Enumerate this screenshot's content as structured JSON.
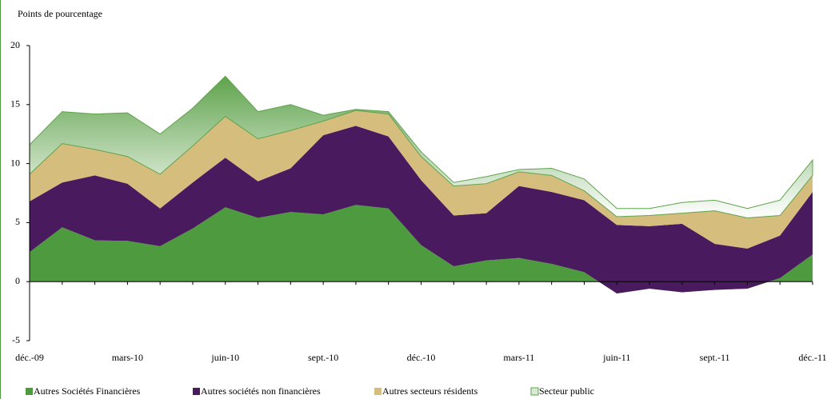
{
  "chart_data": {
    "type": "stacked_area",
    "y_axis_label": "Points de pourcentage",
    "categories": [
      "déc.-09",
      null,
      null,
      "mars-10",
      null,
      null,
      "juin-10",
      null,
      null,
      "sept.-10",
      null,
      null,
      "déc.-10",
      null,
      null,
      "mars-11",
      null,
      null,
      "juin-11",
      null,
      null,
      "sept.-11",
      null,
      null,
      "déc.-11"
    ],
    "series": [
      {
        "name": "Autres Sociétés Financières",
        "color": "#4e9a3f",
        "values": [
          2.5,
          4.6,
          3.5,
          3.45,
          3.0,
          4.5,
          6.3,
          5.4,
          5.9,
          5.7,
          6.5,
          6.2,
          3.1,
          1.3,
          1.8,
          2.0,
          1.5,
          0.8,
          -1.0,
          -0.6,
          -0.9,
          -0.7,
          -0.6,
          0.3,
          2.3
        ]
      },
      {
        "name": "Autres sociétés non financières",
        "color": "#4a1a5e",
        "values": [
          4.3,
          3.8,
          5.5,
          4.85,
          3.2,
          3.9,
          4.2,
          3.1,
          3.7,
          6.7,
          6.7,
          6.1,
          5.5,
          4.3,
          4.0,
          6.1,
          6.1,
          6.1,
          5.8,
          5.3,
          5.8,
          3.9,
          3.4,
          3.6,
          5.3
        ]
      },
      {
        "name": "Autres secteurs résidents",
        "color": "#d5bd7e",
        "values": [
          2.3,
          3.3,
          2.2,
          2.3,
          2.9,
          3.1,
          3.5,
          3.6,
          3.2,
          1.2,
          1.3,
          1.9,
          2.0,
          2.5,
          2.5,
          1.2,
          1.4,
          0.8,
          0.7,
          0.9,
          0.9,
          2.8,
          2.6,
          1.7,
          1.4
        ]
      },
      {
        "name": "Secteur public",
        "color": "#5fa34c",
        "gradient": true,
        "values": [
          2.5,
          2.7,
          3.0,
          3.7,
          3.4,
          3.2,
          3.4,
          2.3,
          2.2,
          0.5,
          0.1,
          0.2,
          0.4,
          0.3,
          0.6,
          0.2,
          0.6,
          1.0,
          0.7,
          0.6,
          0.9,
          0.9,
          0.8,
          1.3,
          1.3
        ]
      }
    ],
    "ylim": [
      -5,
      20
    ],
    "yticks": [
      -5,
      0,
      5,
      10,
      15,
      20
    ]
  }
}
